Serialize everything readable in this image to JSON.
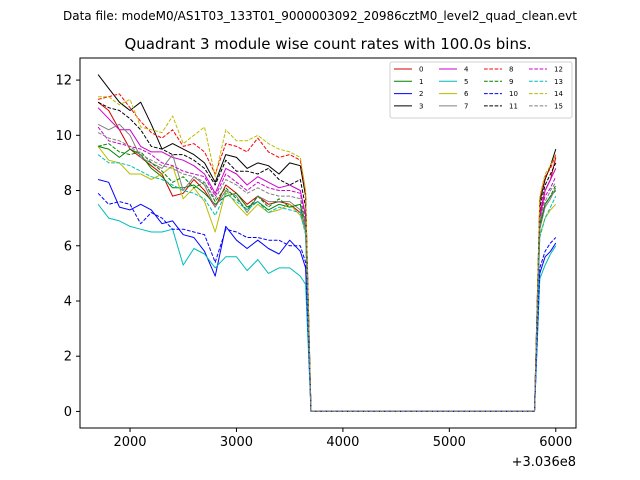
{
  "suptitle": "Data file: modeM0/AS1T03_133T01_9000003092_20986cztM0_level2_quad_clean.evt",
  "chart_data": {
    "type": "line",
    "title": "Quadrant 3 module wise count rates with 100.0s bins.",
    "xlabel": "",
    "ylabel": "",
    "x_offset_label": "+3.036e8",
    "xlim": [
      1530,
      6190
    ],
    "ylim": [
      -0.6,
      12.8
    ],
    "xticks": [
      2000,
      3000,
      4000,
      5000,
      6000
    ],
    "yticks": [
      0,
      2,
      4,
      6,
      8,
      10,
      12
    ],
    "legend_position": "top-right",
    "x": [
      1700,
      1800,
      1900,
      2000,
      2100,
      2200,
      2300,
      2400,
      2500,
      2600,
      2700,
      2800,
      2900,
      3000,
      3100,
      3200,
      3300,
      3400,
      3500,
      3600,
      3650,
      3700,
      5800,
      5850,
      5900,
      5950,
      6000
    ],
    "series": [
      {
        "name": "0",
        "color": "#d00000",
        "dash": "solid",
        "values": [
          11.2,
          10.9,
          10.2,
          9.5,
          9.2,
          8.9,
          8.6,
          7.8,
          7.9,
          8.4,
          8.0,
          7.4,
          8.2,
          7.9,
          7.5,
          7.8,
          7.5,
          7.6,
          7.5,
          7.2,
          6.7,
          0.0,
          0.0,
          7.0,
          8.0,
          8.4,
          9.2
        ]
      },
      {
        "name": "1",
        "color": "#008000",
        "dash": "solid",
        "values": [
          9.6,
          9.5,
          9.2,
          9.5,
          9.3,
          8.8,
          8.5,
          8.1,
          8.1,
          8.2,
          7.9,
          7.5,
          7.8,
          7.9,
          7.4,
          7.6,
          7.3,
          7.5,
          7.4,
          7.5,
          6.5,
          0.0,
          0.0,
          6.8,
          7.5,
          7.8,
          8.0
        ]
      },
      {
        "name": "2",
        "color": "#0000ff",
        "dash": "solid",
        "values": [
          8.4,
          8.3,
          7.4,
          7.3,
          7.5,
          7.3,
          6.8,
          6.9,
          6.4,
          6.3,
          5.8,
          4.9,
          6.7,
          6.2,
          5.9,
          6.2,
          5.9,
          5.7,
          6.2,
          5.8,
          5.2,
          0.0,
          0.0,
          5.0,
          5.6,
          5.8,
          6.1
        ]
      },
      {
        "name": "3",
        "color": "#000000",
        "dash": "solid",
        "values": [
          12.2,
          11.7,
          11.2,
          10.9,
          11.2,
          10.4,
          9.5,
          9.7,
          9.5,
          9.3,
          9.0,
          8.3,
          9.3,
          9.2,
          8.8,
          9.0,
          8.9,
          8.6,
          9.0,
          8.9,
          7.8,
          0.0,
          0.0,
          7.6,
          8.4,
          8.9,
          9.5
        ]
      },
      {
        "name": "4",
        "color": "#cc00cc",
        "dash": "solid",
        "values": [
          11.0,
          10.6,
          10.2,
          10.2,
          9.6,
          9.4,
          9.4,
          9.2,
          9.1,
          8.9,
          8.6,
          7.9,
          8.8,
          8.6,
          8.2,
          8.5,
          8.3,
          8.1,
          8.2,
          8.0,
          7.1,
          0.0,
          0.0,
          7.2,
          8.0,
          8.4,
          8.8
        ]
      },
      {
        "name": "5",
        "color": "#00bcbc",
        "dash": "solid",
        "values": [
          7.5,
          7.0,
          6.9,
          6.7,
          6.6,
          6.5,
          6.5,
          6.6,
          5.3,
          5.9,
          5.7,
          5.2,
          5.6,
          5.6,
          5.1,
          5.5,
          5.0,
          5.2,
          5.2,
          4.9,
          4.6,
          0.0,
          0.0,
          4.8,
          5.3,
          5.7,
          6.0
        ]
      },
      {
        "name": "6",
        "color": "#bcbc00",
        "dash": "solid",
        "values": [
          9.6,
          9.1,
          9.0,
          8.6,
          8.6,
          8.4,
          8.6,
          8.9,
          7.7,
          8.1,
          7.6,
          6.5,
          8.0,
          7.5,
          7.1,
          7.5,
          7.2,
          7.3,
          7.5,
          7.1,
          6.5,
          0.0,
          0.0,
          6.4,
          7.0,
          7.3,
          7.5
        ]
      },
      {
        "name": "7",
        "color": "#808080",
        "dash": "solid",
        "values": [
          10.4,
          10.2,
          10.4,
          10.0,
          9.2,
          9.0,
          8.8,
          9.3,
          8.0,
          8.5,
          8.2,
          7.4,
          8.0,
          7.8,
          7.2,
          7.8,
          7.6,
          7.6,
          7.6,
          7.3,
          6.6,
          0.0,
          0.0,
          6.6,
          7.4,
          7.7,
          8.1
        ]
      },
      {
        "name": "8",
        "color": "#ff0000",
        "dash": "dashed",
        "values": [
          11.3,
          11.4,
          11.5,
          11.0,
          10.5,
          10.1,
          9.9,
          10.2,
          9.6,
          9.7,
          9.4,
          8.6,
          9.7,
          9.6,
          9.4,
          9.9,
          9.4,
          9.2,
          9.3,
          9.1,
          7.9,
          0.0,
          0.0,
          7.7,
          8.5,
          8.8,
          9.3
        ]
      },
      {
        "name": "9",
        "color": "#008000",
        "dash": "dashed",
        "values": [
          9.6,
          9.7,
          9.4,
          9.3,
          9.4,
          9.0,
          8.7,
          8.3,
          8.5,
          8.1,
          8.3,
          7.6,
          8.1,
          7.7,
          7.3,
          7.8,
          7.4,
          7.7,
          7.4,
          7.5,
          6.8,
          0.0,
          0.0,
          6.7,
          7.5,
          7.8,
          8.2
        ]
      },
      {
        "name": "10",
        "color": "#0000ff",
        "dash": "dashed",
        "values": [
          7.9,
          7.5,
          7.6,
          7.5,
          6.8,
          7.2,
          7.0,
          6.6,
          6.6,
          6.5,
          6.4,
          5.4,
          6.6,
          6.5,
          6.3,
          6.3,
          6.2,
          6.2,
          6.0,
          6.0,
          5.4,
          0.0,
          0.0,
          5.2,
          5.8,
          6.1,
          6.3
        ]
      },
      {
        "name": "11",
        "color": "#000000",
        "dash": "dashed",
        "values": [
          11.2,
          11.0,
          10.9,
          10.6,
          10.2,
          9.6,
          9.5,
          9.3,
          9.3,
          9.1,
          8.8,
          8.2,
          9.1,
          8.7,
          8.7,
          8.6,
          8.8,
          8.4,
          8.2,
          8.4,
          7.4,
          0.0,
          0.0,
          7.4,
          8.2,
          8.6,
          9.0
        ]
      },
      {
        "name": "12",
        "color": "#cc00cc",
        "dash": "dashed",
        "values": [
          10.3,
          9.8,
          9.7,
          9.6,
          9.5,
          9.3,
          9.0,
          8.9,
          8.7,
          8.6,
          8.5,
          7.8,
          8.6,
          8.3,
          8.0,
          8.3,
          8.1,
          8.0,
          8.0,
          7.9,
          6.9,
          0.0,
          0.0,
          7.0,
          7.8,
          8.1,
          8.5
        ]
      },
      {
        "name": "13",
        "color": "#00bcbc",
        "dash": "dashed",
        "values": [
          9.3,
          9.0,
          9.0,
          8.9,
          8.7,
          8.5,
          8.4,
          8.2,
          8.0,
          7.9,
          7.7,
          7.1,
          7.9,
          7.6,
          7.3,
          7.6,
          7.2,
          7.4,
          7.3,
          7.2,
          6.4,
          0.0,
          0.0,
          6.3,
          7.0,
          7.4,
          7.8
        ]
      },
      {
        "name": "14",
        "color": "#bcbc00",
        "dash": "dashed",
        "values": [
          11.4,
          11.4,
          11.1,
          11.3,
          10.3,
          10.2,
          10.1,
          10.7,
          9.7,
          10.0,
          10.3,
          8.5,
          10.2,
          9.8,
          9.8,
          10.0,
          9.7,
          9.5,
          9.4,
          9.2,
          8.0,
          0.0,
          0.0,
          7.8,
          8.6,
          8.9,
          9.3
        ]
      },
      {
        "name": "15",
        "color": "#808080",
        "dash": "dashed",
        "values": [
          10.1,
          9.9,
          9.8,
          9.6,
          9.3,
          9.1,
          8.9,
          8.8,
          8.6,
          8.5,
          8.3,
          7.7,
          8.4,
          8.2,
          7.9,
          8.1,
          7.9,
          7.8,
          7.8,
          7.7,
          6.8,
          0.0,
          0.0,
          6.9,
          7.6,
          8.0,
          8.3
        ]
      }
    ]
  }
}
